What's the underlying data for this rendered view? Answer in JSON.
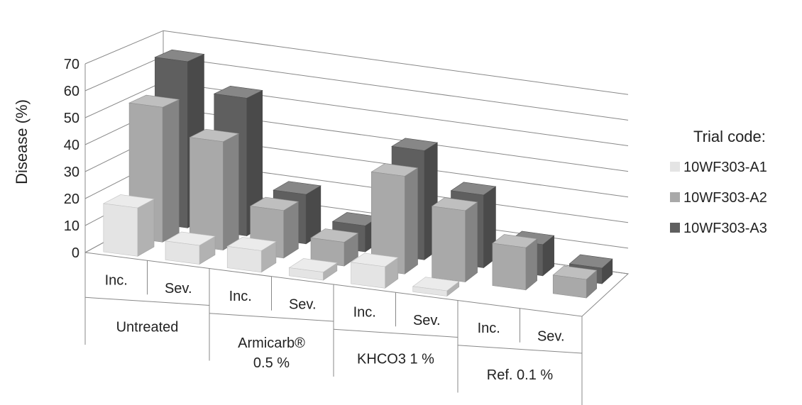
{
  "chart_data": {
    "type": "bar",
    "subtype": "3d-clustered",
    "ylabel": "Disease (%)",
    "ylim": [
      0,
      70
    ],
    "yticks": [
      0,
      10,
      20,
      30,
      40,
      50,
      60,
      70
    ],
    "grid": true,
    "categories": [
      {
        "sub": "Inc.",
        "group": "Untreated"
      },
      {
        "sub": "Sev.",
        "group": "Untreated"
      },
      {
        "sub": "Inc.",
        "group": "Armicarb® 0.5 %"
      },
      {
        "sub": "Sev.",
        "group": "Armicarb® 0.5 %"
      },
      {
        "sub": "Inc.",
        "group": "KHCO3 1 %"
      },
      {
        "sub": "Sev.",
        "group": "KHCO3 1 %"
      },
      {
        "sub": "Inc.",
        "group": "Ref. 0.1 %"
      },
      {
        "sub": "Sev.",
        "group": "Ref. 0.1 %"
      }
    ],
    "groups": [
      {
        "name_lines": [
          "Untreated"
        ]
      },
      {
        "name_lines": [
          "Armicarb®",
          "0.5 %"
        ]
      },
      {
        "name_lines": [
          "KHCO3 1 %"
        ]
      },
      {
        "name_lines": [
          "Ref. 0.1 %"
        ]
      }
    ],
    "legend": {
      "title": "Trial code:",
      "position": "right"
    },
    "series": [
      {
        "name": "10WF303-A1",
        "color": "#e4e4e4",
        "values": [
          18,
          7,
          8,
          3,
          8,
          2,
          null,
          null
        ]
      },
      {
        "name": "10WF303-A2",
        "color": "#a9a9a9",
        "values": [
          51,
          41,
          18,
          9,
          37,
          27,
          16,
          7
        ]
      },
      {
        "name": "10WF303-A3",
        "color": "#5f5f5f",
        "values": [
          64,
          53,
          19,
          10,
          42,
          28,
          12,
          6
        ]
      }
    ]
  }
}
